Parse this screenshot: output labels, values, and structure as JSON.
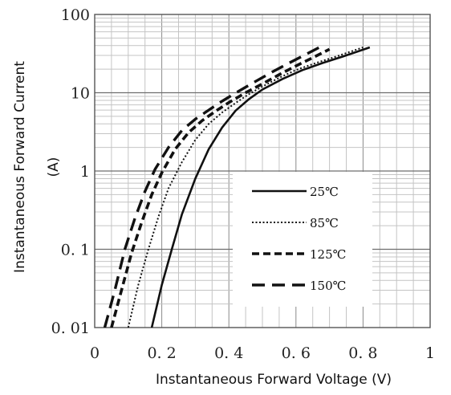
{
  "chart_data": {
    "type": "line",
    "title": "",
    "xlabel": "Instantaneous Forward Voltage (V)",
    "ylabel_lines": [
      "Instantaneous Forward Current",
      "(A)"
    ],
    "x_scale": "linear",
    "y_scale": "log",
    "xlim": [
      0,
      1
    ],
    "ylim": [
      0.01,
      100
    ],
    "x_ticks": [
      0,
      0.2,
      0.4,
      0.6,
      0.8,
      1
    ],
    "x_tick_labels": [
      "0",
      "0. 2",
      "0. 4",
      "0. 6",
      "0. 8",
      "1"
    ],
    "y_ticks": [
      0.01,
      0.1,
      1,
      10,
      100
    ],
    "y_tick_labels": [
      "0. 01",
      "0. 1",
      "1",
      "10",
      "100"
    ],
    "grid": true,
    "legend_position": "lower-right",
    "series": [
      {
        "name": "25℃",
        "line_style": "solid",
        "x": [
          0.17,
          0.2,
          0.23,
          0.26,
          0.3,
          0.34,
          0.38,
          0.42,
          0.46,
          0.5,
          0.56,
          0.62,
          0.68,
          0.74,
          0.82
        ],
        "y": [
          0.01,
          0.035,
          0.1,
          0.28,
          0.8,
          1.9,
          3.6,
          5.9,
          8.3,
          11,
          15,
          19.5,
          24,
          29,
          38
        ]
      },
      {
        "name": "85℃",
        "line_style": "dotted",
        "x": [
          0.1,
          0.13,
          0.16,
          0.19,
          0.22,
          0.26,
          0.3,
          0.34,
          0.38,
          0.42,
          0.46,
          0.5,
          0.55,
          0.6,
          0.66,
          0.72,
          0.8
        ],
        "y": [
          0.01,
          0.035,
          0.1,
          0.26,
          0.6,
          1.3,
          2.5,
          4.0,
          5.6,
          7.4,
          9.6,
          12,
          15.5,
          19.5,
          24,
          29,
          38
        ]
      },
      {
        "name": "125℃",
        "line_style": "dashed",
        "x": [
          0.05,
          0.08,
          0.11,
          0.14,
          0.17,
          0.2,
          0.24,
          0.28,
          0.32,
          0.36,
          0.4,
          0.45,
          0.5,
          0.55,
          0.6,
          0.65,
          0.7
        ],
        "y": [
          0.01,
          0.03,
          0.09,
          0.22,
          0.5,
          0.95,
          1.9,
          3.1,
          4.4,
          5.8,
          7.5,
          10,
          13,
          17,
          22,
          28,
          36
        ]
      },
      {
        "name": "150℃",
        "line_style": "long-dashed",
        "x": [
          0.03,
          0.06,
          0.09,
          0.12,
          0.15,
          0.18,
          0.22,
          0.26,
          0.3,
          0.34,
          0.38,
          0.43,
          0.48,
          0.53,
          0.58,
          0.63,
          0.68
        ],
        "y": [
          0.01,
          0.03,
          0.1,
          0.25,
          0.55,
          1.05,
          2.0,
          3.3,
          4.6,
          6.0,
          7.8,
          10.5,
          14,
          18.5,
          24,
          31,
          40
        ]
      }
    ]
  }
}
